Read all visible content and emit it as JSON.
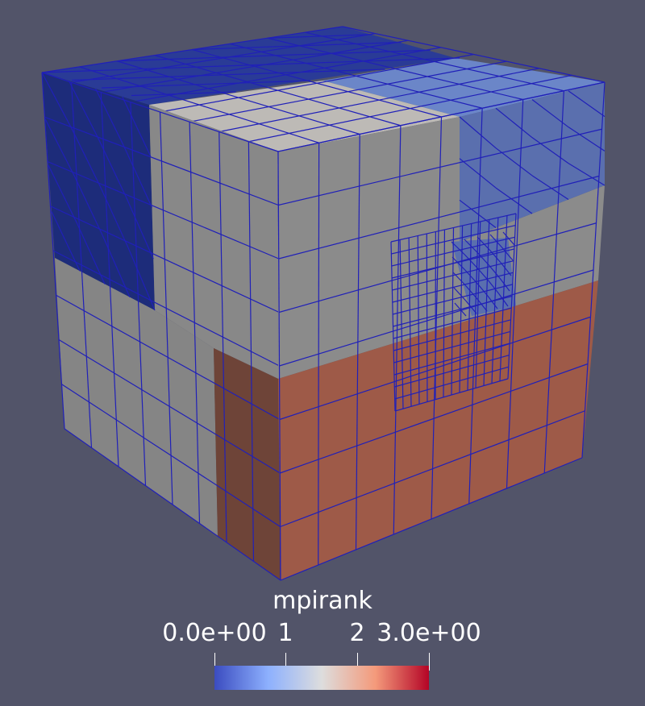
{
  "legend": {
    "title": "mpirank",
    "ticks": [
      {
        "label": "0.0e+00",
        "value": 0
      },
      {
        "label": "1",
        "value": 1
      },
      {
        "label": "2",
        "value": 2
      },
      {
        "label": "3.0e+00",
        "value": 3
      }
    ],
    "range": [
      0,
      3
    ],
    "colormap_stops": [
      "#3b4cc0",
      "#8db0fe",
      "#dddddd",
      "#f49a7b",
      "#b40426"
    ]
  },
  "colors": {
    "background": "#525469",
    "mesh_edges": "#1f1fb0",
    "rank_0": "#24358f",
    "rank_1": "#6b86c8",
    "rank_2": "#b8b6b2",
    "rank_3": "#a8604c"
  }
}
